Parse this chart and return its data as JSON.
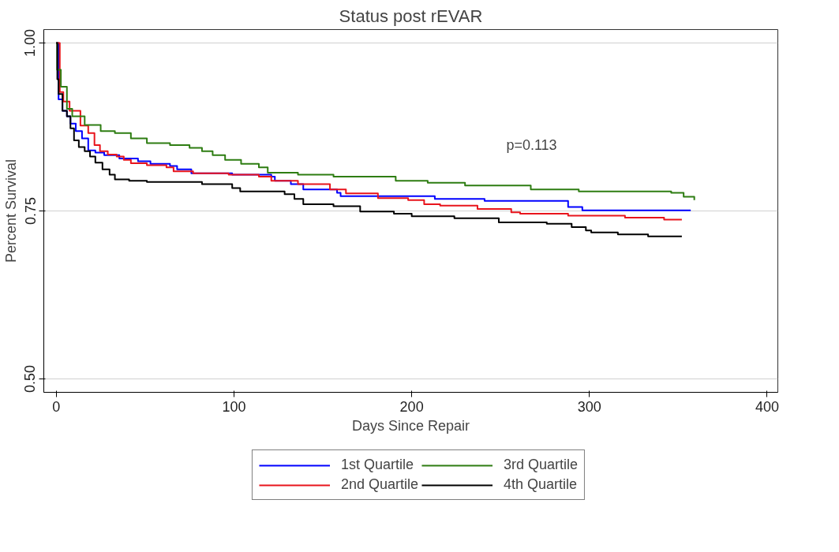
{
  "chart_data": {
    "type": "step",
    "title": "Status post rEVAR",
    "xlabel": "Days Since Repair",
    "ylabel": "Percent Survival",
    "annotations": [
      "p=0.113"
    ],
    "xlim": [
      -7,
      406
    ],
    "ylim": [
      0.48,
      1.02
    ],
    "xticks": [
      0,
      100,
      200,
      300,
      400
    ],
    "yticks": [
      {
        "value": 0.5,
        "label": "0.50"
      },
      {
        "value": 0.75,
        "label": "0.75"
      },
      {
        "value": 1.0,
        "label": "1.00"
      }
    ],
    "grid": "y",
    "legend": "bottom",
    "line_style": "solid",
    "marker": "none",
    "series": [
      {
        "name": "1st Quartile",
        "color": "#0000ff",
        "x": [
          0,
          1.3,
          3.5,
          6,
          8,
          11,
          14.5,
          18,
          22,
          27,
          35.5,
          46,
          53,
          64,
          68,
          76,
          99,
          121,
          123,
          132,
          139,
          158,
          160,
          213,
          241,
          288,
          296,
          357
        ],
        "values": [
          1.0,
          0.916,
          0.899,
          0.891,
          0.88,
          0.869,
          0.858,
          0.84,
          0.837,
          0.833,
          0.828,
          0.824,
          0.82,
          0.817,
          0.812,
          0.806,
          0.804,
          0.801,
          0.795,
          0.79,
          0.782,
          0.777,
          0.772,
          0.768,
          0.765,
          0.756,
          0.751,
          0.751
        ]
      },
      {
        "name": "2nd Quartile",
        "color": "#e8141c",
        "x": [
          0,
          2,
          4,
          7.5,
          13.6,
          18,
          21.5,
          24.6,
          29,
          34,
          38,
          42,
          51,
          62,
          66,
          77,
          97,
          114,
          121,
          136,
          154,
          163,
          181,
          198,
          207,
          216,
          237,
          256,
          261,
          288,
          320,
          342,
          352
        ],
        "values": [
          1.0,
          0.927,
          0.913,
          0.899,
          0.877,
          0.866,
          0.848,
          0.839,
          0.834,
          0.831,
          0.826,
          0.821,
          0.818,
          0.815,
          0.809,
          0.806,
          0.804,
          0.801,
          0.795,
          0.79,
          0.782,
          0.776,
          0.769,
          0.766,
          0.76,
          0.758,
          0.753,
          0.748,
          0.746,
          0.743,
          0.74,
          0.737,
          0.737
        ]
      },
      {
        "name": "3rd Quartile",
        "color": "#2e7d12",
        "x": [
          0,
          0.5,
          2.6,
          6,
          9,
          16,
          25,
          33,
          42,
          51,
          64,
          75,
          82,
          88,
          95,
          104,
          114,
          119,
          136,
          156,
          191,
          209,
          230,
          267,
          294,
          346,
          353,
          359
        ],
        "values": [
          1.0,
          0.96,
          0.935,
          0.902,
          0.891,
          0.878,
          0.869,
          0.866,
          0.858,
          0.851,
          0.848,
          0.844,
          0.839,
          0.833,
          0.826,
          0.82,
          0.815,
          0.807,
          0.804,
          0.801,
          0.795,
          0.792,
          0.788,
          0.782,
          0.779,
          0.777,
          0.771,
          0.766
        ]
      },
      {
        "name": "4th Quartile",
        "color": "#000000",
        "x": [
          0,
          0.6,
          1.3,
          3.5,
          6,
          8,
          10,
          12.7,
          16,
          19,
          22,
          26,
          30,
          33,
          41,
          51,
          82,
          99,
          103.5,
          128.5,
          134,
          139,
          156,
          171,
          190,
          200,
          224,
          249,
          276,
          290,
          298,
          301,
          316,
          333,
          352
        ],
        "values": [
          1.0,
          0.946,
          0.924,
          0.899,
          0.891,
          0.873,
          0.855,
          0.845,
          0.839,
          0.831,
          0.822,
          0.812,
          0.804,
          0.797,
          0.795,
          0.793,
          0.79,
          0.784,
          0.779,
          0.775,
          0.768,
          0.76,
          0.757,
          0.749,
          0.746,
          0.742,
          0.739,
          0.733,
          0.731,
          0.726,
          0.721,
          0.718,
          0.715,
          0.712,
          0.712
        ]
      }
    ]
  }
}
